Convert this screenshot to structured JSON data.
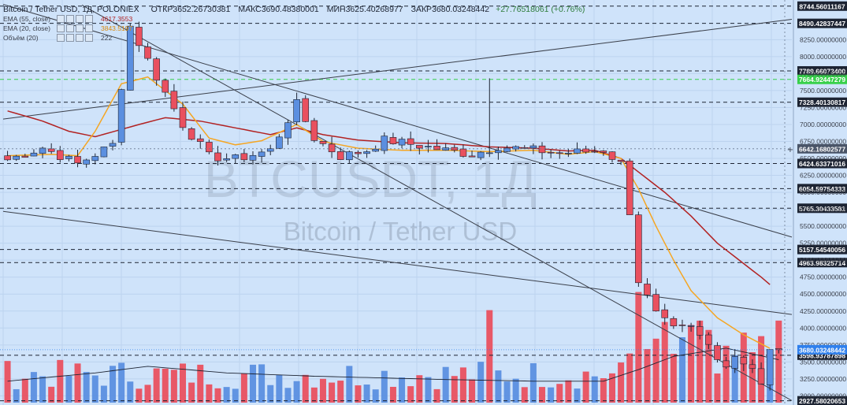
{
  "header": {
    "symbol": "Bitcoin / Tether USD, 1Д, POLONIEX",
    "open_label": "ОТКР",
    "open": "3652.26730381",
    "high_label": "МАКС",
    "high": "3690.48380001",
    "low_label": "МИН",
    "low": "3625.40268977",
    "close_label": "ЗАКР",
    "close": "3680.03248442",
    "change": "+27.76518061 (+0.76%)"
  },
  "indicators": [
    {
      "name": "EMA (55, close)",
      "value": "4617.3553",
      "color": "#b22222"
    },
    {
      "name": "EMA (20, close)",
      "value": "3843.5197",
      "color": "#f5a623"
    },
    {
      "name": "Объём (20)",
      "value": "222",
      "color": "#1d2433"
    }
  ],
  "watermark": {
    "ticker": "BTCUSDT, 1Д",
    "name": "Bitcoin / Tether USD"
  },
  "colors": {
    "background": "#cfe3fa",
    "up": "#5b8fe0",
    "down": "#e9505f",
    "ema55": "#b22222",
    "ema20": "#f5a623",
    "volume_ma": "#1d2433",
    "trendline": "#3a3f4a",
    "hline": "#1d2433",
    "hline_green": "#37d04a",
    "price_label_bg": "#1d2433",
    "current_price_bg": "#2f80ed"
  },
  "chart_data": {
    "type": "candlestick",
    "title": "Bitcoin / Tether USD, 1Д, POLONIEX",
    "ylim": [
      2900,
      8800
    ],
    "y_axis": "right",
    "y_ticks": [
      8250,
      8000,
      7750,
      7500,
      7250,
      7000,
      6750,
      6500,
      6250,
      6000,
      5750,
      5500,
      5250,
      5000,
      4750,
      4500,
      4250,
      4000,
      3750,
      3500,
      3250,
      3000
    ],
    "tick_decimals": 8,
    "last_bar": {
      "open": 3652.26730381,
      "high": 3690.48380001,
      "low": 3625.40268977,
      "close": 3680.03248442
    },
    "horizontal_levels": [
      {
        "value": 8744.56011167,
        "label": "8744.56011167",
        "style": "dashed"
      },
      {
        "value": 8490.42837447,
        "label": "8490.42837447",
        "style": "dashed"
      },
      {
        "value": 7789.660734,
        "label": "7789.66073400",
        "style": "dashed"
      },
      {
        "value": 7664.92447279,
        "label": "7664.92447279",
        "style": "dashed-green"
      },
      {
        "value": 7328.40130817,
        "label": "7328.40130817",
        "style": "dashed"
      },
      {
        "value": 6424.63371016,
        "label": "6424.63371016",
        "style": "dashed"
      },
      {
        "value": 6054.59754333,
        "label": "6054.59754333",
        "style": "dashed"
      },
      {
        "value": 5765.30433581,
        "label": "5765.30433581",
        "style": "dashed"
      },
      {
        "value": 5157.54540056,
        "label": "5157.54540056",
        "style": "dashed"
      },
      {
        "value": 4963.98325714,
        "label": "4963.98325714",
        "style": "dashed"
      },
      {
        "value": 3598.93787898,
        "label": "3598.93787898",
        "style": "dashed"
      },
      {
        "value": 2927.58020653,
        "label": "2927.58020653",
        "style": "dashed"
      }
    ],
    "crosshair": {
      "value": 6642.16802577,
      "label": "6642.16802577"
    },
    "current_price": {
      "value": 3680.03248442,
      "label": "3680.03248442"
    },
    "trendlines": [
      {
        "from": [
          0,
          7080
        ],
        "to": [
          100,
          8550
        ]
      },
      {
        "from": [
          0,
          8770
        ],
        "to": [
          100,
          5340
        ]
      },
      {
        "from": [
          10,
          8760
        ],
        "to": [
          100,
          2930
        ]
      },
      {
        "from": [
          0,
          5720
        ],
        "to": [
          100,
          4200
        ]
      }
    ],
    "anchors": {
      "close": [
        [
          0,
          6480
        ],
        [
          4,
          6660
        ],
        [
          8,
          6420
        ],
        [
          12,
          6700
        ],
        [
          14,
          8450
        ],
        [
          17,
          7700
        ],
        [
          20,
          7000
        ],
        [
          23,
          6530
        ],
        [
          26,
          6490
        ],
        [
          30,
          6620
        ],
        [
          33,
          7300
        ],
        [
          35,
          6800
        ],
        [
          38,
          6530
        ],
        [
          41,
          6620
        ],
        [
          43,
          6770
        ],
        [
          46,
          6710
        ],
        [
          50,
          6620
        ],
        [
          53,
          6560
        ],
        [
          56,
          6680
        ],
        [
          58,
          6650
        ],
        [
          63,
          6580
        ],
        [
          66,
          6600
        ],
        [
          68,
          6620
        ],
        [
          70,
          6420
        ],
        [
          71,
          5720
        ],
        [
          72,
          4700
        ],
        [
          74,
          4200
        ],
        [
          76,
          3970
        ],
        [
          78,
          4000
        ],
        [
          80,
          3750
        ],
        [
          82,
          3450
        ],
        [
          83,
          3600
        ],
        [
          85,
          3420
        ],
        [
          86,
          3150
        ],
        [
          87,
          3650
        ],
        [
          88,
          3680
        ]
      ]
    },
    "wick_spikes": [
      {
        "bar": 55,
        "high": 7680
      }
    ],
    "volume_spikes": [
      {
        "bar": 55,
        "ratio": 0.56
      },
      {
        "bar": 72,
        "ratio": 0.67
      }
    ],
    "ema20": [
      [
        0,
        6540
      ],
      [
        5,
        6560
      ],
      [
        8,
        6540
      ],
      [
        10,
        6900
      ],
      [
        13,
        7600
      ],
      [
        16,
        7700
      ],
      [
        20,
        7300
      ],
      [
        23,
        6800
      ],
      [
        26,
        6700
      ],
      [
        29,
        6760
      ],
      [
        33,
        7000
      ],
      [
        36,
        6750
      ],
      [
        40,
        6650
      ],
      [
        45,
        6620
      ],
      [
        50,
        6620
      ],
      [
        55,
        6600
      ],
      [
        60,
        6620
      ],
      [
        64,
        6560
      ],
      [
        67,
        6600
      ],
      [
        70,
        6500
      ],
      [
        72,
        6050
      ],
      [
        74,
        5500
      ],
      [
        76,
        5000
      ],
      [
        78,
        4550
      ],
      [
        81,
        4150
      ],
      [
        84,
        3900
      ],
      [
        87,
        3700
      ]
    ],
    "ema55": [
      [
        0,
        7200
      ],
      [
        4,
        7050
      ],
      [
        7,
        6900
      ],
      [
        10,
        6820
      ],
      [
        15,
        7000
      ],
      [
        18,
        7100
      ],
      [
        22,
        7050
      ],
      [
        26,
        6950
      ],
      [
        30,
        6850
      ],
      [
        33,
        6950
      ],
      [
        36,
        6850
      ],
      [
        40,
        6770
      ],
      [
        45,
        6730
      ],
      [
        50,
        6720
      ],
      [
        55,
        6670
      ],
      [
        60,
        6650
      ],
      [
        64,
        6610
      ],
      [
        67,
        6620
      ],
      [
        70,
        6500
      ],
      [
        72,
        6300
      ],
      [
        75,
        6000
      ],
      [
        78,
        5650
      ],
      [
        81,
        5250
      ],
      [
        84,
        4950
      ],
      [
        86,
        4750
      ],
      [
        87,
        4640
      ]
    ]
  }
}
